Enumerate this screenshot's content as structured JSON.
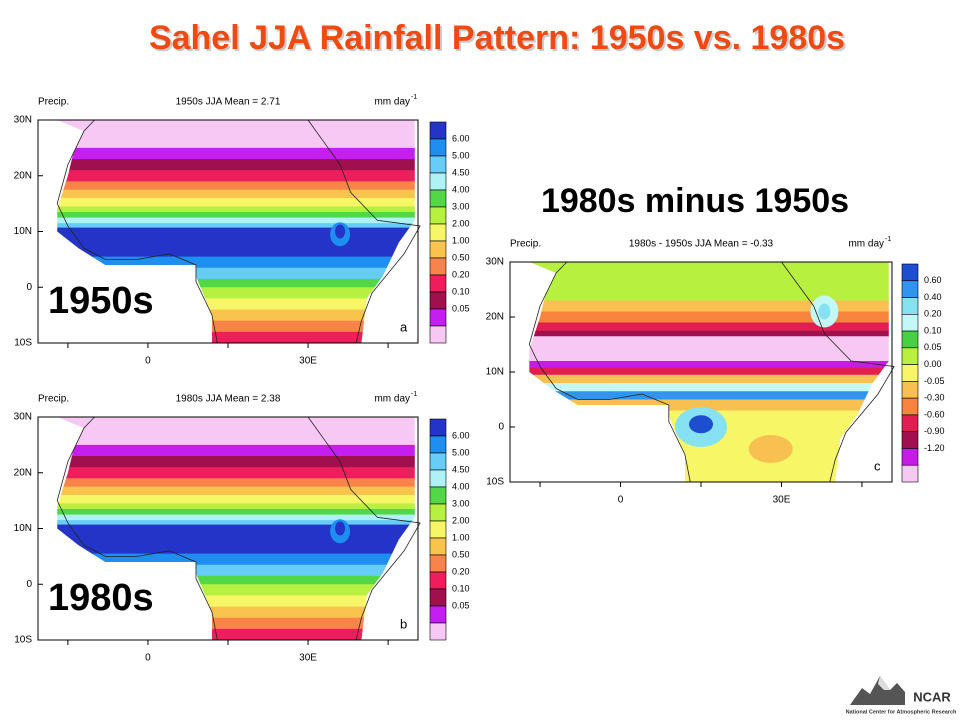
{
  "title": "Sahel JJA Rainfall Pattern: 1950s vs. 1980s",
  "diff_heading": "1980s minus 1950s",
  "panels": [
    {
      "big_label": "1950s",
      "var": "Precip.",
      "subtitle": "1950s JJA Mean =  2.71",
      "units": "mm day",
      "units_exp": "-1",
      "letter": "a",
      "lat_ticks": [
        "30N",
        "20N",
        "10N",
        "0",
        "10S"
      ],
      "lon_ticks": [
        "0",
        "30E"
      ],
      "colorbar": [
        "6.00",
        "5.00",
        "4.50",
        "4.00",
        "3.00",
        "2.00",
        "1.00",
        "0.50",
        "0.20",
        "0.10",
        "0.05"
      ],
      "colors": [
        "#2434c8",
        "#1e8ef0",
        "#66ccf8",
        "#aef2f6",
        "#52d846",
        "#b6f040",
        "#f6f666",
        "#f8c44e",
        "#f8844a",
        "#ee1e5c",
        "#a0104e",
        "#c41ef0",
        "#f8c8f4"
      ]
    },
    {
      "big_label": "1980s",
      "var": "Precip.",
      "subtitle": "1980s JJA Mean =  2.38",
      "units": "mm day",
      "units_exp": "-1",
      "letter": "b",
      "lat_ticks": [
        "30N",
        "20N",
        "10N",
        "0",
        "10S"
      ],
      "lon_ticks": [
        "0",
        "30E"
      ],
      "colorbar": [
        "6.00",
        "5.00",
        "4.50",
        "4.00",
        "3.00",
        "2.00",
        "1.00",
        "0.50",
        "0.20",
        "0.10",
        "0.05"
      ],
      "colors": [
        "#2434c8",
        "#1e8ef0",
        "#66ccf8",
        "#aef2f6",
        "#52d846",
        "#b6f040",
        "#f6f666",
        "#f8c44e",
        "#f8844a",
        "#ee1e5c",
        "#a0104e",
        "#c41ef0",
        "#f8c8f4"
      ]
    },
    {
      "var": "Precip.",
      "subtitle": "1980s - 1950s JJA Mean = -0.33",
      "units": "mm day",
      "units_exp": "-1",
      "letter": "c",
      "lat_ticks": [
        "30N",
        "20N",
        "10N",
        "0",
        "10S"
      ],
      "lon_ticks": [
        "0",
        "30E"
      ],
      "colorbar": [
        "0.60",
        "0.40",
        "0.20",
        "0.10",
        "0.05",
        "0.00",
        "-0.05",
        "-0.30",
        "-0.60",
        "-0.90",
        "-1.20"
      ],
      "colors": [
        "#1e4ed0",
        "#3094f0",
        "#86e2f2",
        "#c4f8f6",
        "#46d044",
        "#b8f040",
        "#f6f666",
        "#f8c050",
        "#f8843e",
        "#e01e52",
        "#a0104e",
        "#c41ee4",
        "#f8c8f4"
      ]
    }
  ],
  "logo": {
    "name": "NCAR",
    "full": "National Center for Atmospheric Research"
  }
}
